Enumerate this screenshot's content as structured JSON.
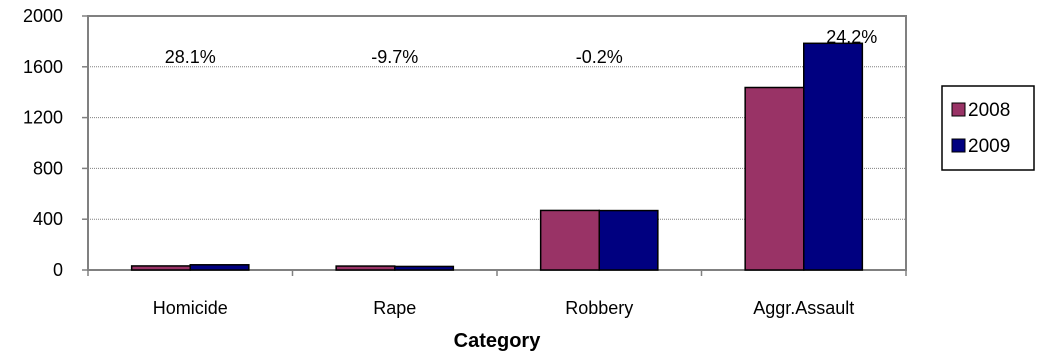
{
  "chart_data": {
    "type": "bar",
    "categories": [
      "Homicide",
      "Rape",
      "Robbery",
      "Aggr.Assault"
    ],
    "series": [
      {
        "name": "2008",
        "values": [
          32,
          31,
          469,
          1437
        ],
        "color": "#993366"
      },
      {
        "name": "2009",
        "values": [
          41,
          28,
          468,
          1785
        ],
        "color": "#000080"
      }
    ],
    "annotations": [
      "28.1%",
      "-9.7%",
      "-0.2%",
      "24.2%"
    ],
    "title": "",
    "xlabel": "Category",
    "ylabel": "",
    "ylim": [
      0,
      2000
    ],
    "yticks": [
      0,
      400,
      800,
      1200,
      1600,
      2000
    ],
    "grid": true,
    "legend_position": "right",
    "plot_border_color": "#808080"
  }
}
